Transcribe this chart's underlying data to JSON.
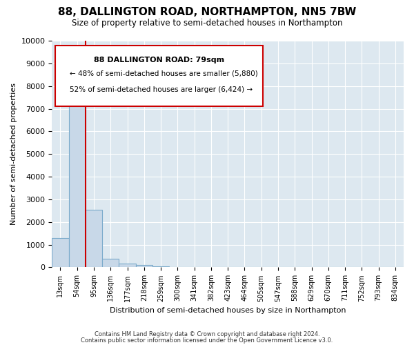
{
  "title": "88, DALLINGTON ROAD, NORTHAMPTON, NN5 7BW",
  "subtitle": "Size of property relative to semi-detached houses in Northampton",
  "xlabel": "Distribution of semi-detached houses by size in Northampton",
  "ylabel": "Number of semi-detached properties",
  "bar_labels": [
    "13sqm",
    "54sqm",
    "95sqm",
    "136sqm",
    "177sqm",
    "218sqm",
    "259sqm",
    "300sqm",
    "341sqm",
    "382sqm",
    "423sqm",
    "464sqm",
    "505sqm",
    "547sqm",
    "588sqm",
    "629sqm",
    "670sqm",
    "711sqm",
    "752sqm",
    "793sqm",
    "834sqm"
  ],
  "bar_values": [
    1300,
    8050,
    2530,
    390,
    160,
    100,
    50,
    0,
    0,
    0,
    0,
    0,
    0,
    0,
    0,
    0,
    0,
    0,
    0,
    0,
    0
  ],
  "bar_color": "#c8d8e8",
  "bar_edge_color": "#7aaacb",
  "property_line_x": 1.5,
  "property_line_label": "88 DALLINGTON ROAD: 79sqm",
  "annotation_line1": "← 48% of semi-detached houses are smaller (5,880)",
  "annotation_line2": "52% of semi-detached houses are larger (6,424) →",
  "ylim": [
    0,
    10000
  ],
  "yticks": [
    0,
    1000,
    2000,
    3000,
    4000,
    5000,
    6000,
    7000,
    8000,
    9000,
    10000
  ],
  "line_color": "#cc0000",
  "box_edge_color": "#cc0000",
  "footer_line1": "Contains HM Land Registry data © Crown copyright and database right 2024.",
  "footer_line2": "Contains public sector information licensed under the Open Government Licence v3.0.",
  "bg_color": "#ffffff",
  "plot_bg_color": "#dde8f0",
  "grid_color": "#ffffff"
}
